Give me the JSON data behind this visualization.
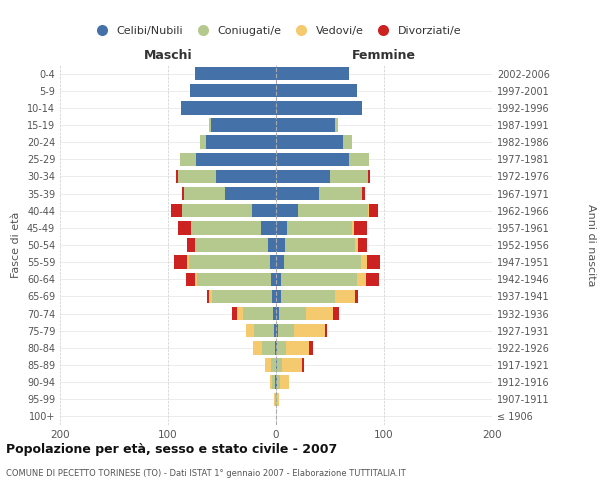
{
  "age_groups": [
    "100+",
    "95-99",
    "90-94",
    "85-89",
    "80-84",
    "75-79",
    "70-74",
    "65-69",
    "60-64",
    "55-59",
    "50-54",
    "45-49",
    "40-44",
    "35-39",
    "30-34",
    "25-29",
    "20-24",
    "15-19",
    "10-14",
    "5-9",
    "0-4"
  ],
  "birth_years": [
    "≤ 1906",
    "1907-1911",
    "1912-1916",
    "1917-1921",
    "1922-1926",
    "1927-1931",
    "1932-1936",
    "1937-1941",
    "1942-1946",
    "1947-1951",
    "1952-1956",
    "1957-1961",
    "1962-1966",
    "1967-1971",
    "1972-1976",
    "1977-1981",
    "1982-1986",
    "1987-1991",
    "1992-1996",
    "1997-2001",
    "2002-2006"
  ],
  "maschi": {
    "celibi": [
      0,
      0,
      1,
      0,
      1,
      2,
      3,
      4,
      5,
      6,
      7,
      14,
      22,
      47,
      56,
      74,
      65,
      60,
      88,
      80,
      75
    ],
    "coniugati": [
      0,
      1,
      3,
      5,
      12,
      18,
      28,
      55,
      68,
      75,
      68,
      65,
      65,
      38,
      35,
      15,
      5,
      2,
      0,
      0,
      0
    ],
    "vedovi": [
      0,
      1,
      2,
      5,
      8,
      8,
      5,
      3,
      2,
      1,
      0,
      0,
      0,
      0,
      0,
      0,
      0,
      0,
      0,
      0,
      0
    ],
    "divorziati": [
      0,
      0,
      0,
      0,
      0,
      0,
      5,
      2,
      8,
      12,
      7,
      12,
      10,
      2,
      2,
      0,
      0,
      0,
      0,
      0,
      0
    ]
  },
  "femmine": {
    "nubili": [
      0,
      0,
      1,
      1,
      1,
      2,
      3,
      5,
      5,
      7,
      8,
      10,
      20,
      40,
      50,
      68,
      62,
      55,
      80,
      75,
      68
    ],
    "coniugate": [
      0,
      1,
      3,
      5,
      8,
      15,
      25,
      50,
      70,
      72,
      65,
      60,
      65,
      40,
      35,
      18,
      8,
      2,
      0,
      0,
      0
    ],
    "vedove": [
      0,
      2,
      8,
      18,
      22,
      28,
      25,
      18,
      8,
      5,
      3,
      2,
      1,
      0,
      0,
      0,
      0,
      0,
      0,
      0,
      0
    ],
    "divorziate": [
      0,
      0,
      0,
      2,
      3,
      2,
      5,
      3,
      12,
      12,
      8,
      12,
      8,
      2,
      2,
      0,
      0,
      0,
      0,
      0,
      0
    ]
  },
  "colors": {
    "celibi": "#4472a8",
    "coniugati": "#b5c98e",
    "vedovi": "#f5c96e",
    "divorziati": "#cc2222"
  },
  "title": "Popolazione per età, sesso e stato civile - 2007",
  "subtitle": "COMUNE DI PECETTO TORINESE (TO) - Dati ISTAT 1° gennaio 2007 - Elaborazione TUTTITALIA.IT",
  "xlabel_left": "Maschi",
  "xlabel_right": "Femmine",
  "ylabel_left": "Fasce di età",
  "ylabel_right": "Anni di nascita",
  "xlim": 200,
  "legend_labels": [
    "Celibi/Nubili",
    "Coniugati/e",
    "Vedovi/e",
    "Divorziati/e"
  ]
}
